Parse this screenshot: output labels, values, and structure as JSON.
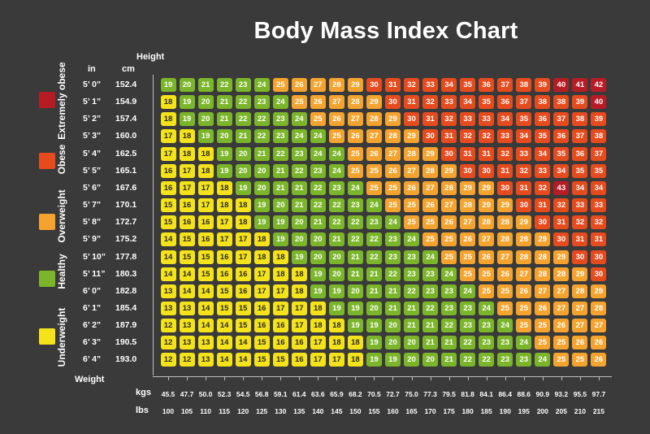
{
  "title": "Body Mass Index Chart",
  "headers": {
    "height": "Height",
    "in": "in",
    "cm": "cm",
    "weight": "Weight",
    "kgs": "kgs",
    "lbs": "lbs"
  },
  "legend": [
    {
      "label": "Extremely obese",
      "color": "#b71c24"
    },
    {
      "label": "Obese",
      "color": "#e64b1e"
    },
    {
      "label": "Overweight",
      "color": "#f4a42e"
    },
    {
      "label": "Healthy",
      "color": "#7bb52a"
    },
    {
      "label": "Underweight",
      "color": "#f4e21b"
    }
  ],
  "chart_data": {
    "type": "heatmap",
    "title": "Body Mass Index Chart",
    "ylabel": "Height",
    "xlabel": "Weight",
    "heights_in": [
      "5’ 0”",
      "5’ 1”",
      "5’ 2”",
      "5’ 3”",
      "5’ 4”",
      "5’ 5”",
      "5’ 6”",
      "5’ 7”",
      "5’ 8”",
      "5’ 9”",
      "5’ 10”",
      "5’ 11”",
      "6’ 0”",
      "6’ 1”",
      "6’ 2”",
      "6’ 3”",
      "6’ 4”"
    ],
    "heights_cm": [
      "152.4",
      "154.9",
      "157.4",
      "160.0",
      "162.5",
      "165.1",
      "167.6",
      "170.1",
      "172.7",
      "175.2",
      "177.8",
      "180.3",
      "182.8",
      "185.4",
      "187.9",
      "190.5",
      "193.0"
    ],
    "weights_kgs": [
      "45.5",
      "47.7",
      "50.0",
      "52.3",
      "54.5",
      "56.8",
      "59.1",
      "61.4",
      "63.6",
      "65.9",
      "68.2",
      "70.5",
      "72.7",
      "75.0",
      "77.3",
      "79.5",
      "81.8",
      "84.1",
      "86.4",
      "88.6",
      "90.9",
      "93.2",
      "95.5",
      "97.7"
    ],
    "weights_lbs": [
      "100",
      "105",
      "110",
      "115",
      "120",
      "125",
      "130",
      "135",
      "140",
      "145",
      "150",
      "155",
      "160",
      "165",
      "170",
      "175",
      "180",
      "185",
      "190",
      "195",
      "200",
      "205",
      "210",
      "215"
    ],
    "values": [
      [
        19,
        20,
        21,
        22,
        23,
        24,
        25,
        26,
        27,
        28,
        29,
        30,
        31,
        32,
        33,
        34,
        35,
        36,
        37,
        38,
        39,
        40,
        41,
        42
      ],
      [
        18,
        19,
        20,
        21,
        22,
        23,
        24,
        25,
        26,
        27,
        28,
        29,
        30,
        31,
        32,
        33,
        34,
        35,
        36,
        37,
        38,
        38,
        39,
        40
      ],
      [
        18,
        19,
        20,
        21,
        22,
        22,
        23,
        24,
        25,
        26,
        27,
        28,
        29,
        30,
        31,
        32,
        33,
        33,
        34,
        35,
        36,
        37,
        38,
        39
      ],
      [
        17,
        18,
        19,
        20,
        21,
        22,
        23,
        24,
        24,
        25,
        26,
        27,
        28,
        29,
        30,
        31,
        32,
        32,
        33,
        34,
        35,
        36,
        37,
        38
      ],
      [
        17,
        18,
        18,
        19,
        20,
        21,
        22,
        23,
        24,
        24,
        25,
        26,
        27,
        28,
        29,
        30,
        31,
        31,
        32,
        33,
        34,
        35,
        36,
        37
      ],
      [
        16,
        17,
        18,
        19,
        20,
        20,
        21,
        22,
        23,
        24,
        25,
        25,
        26,
        27,
        28,
        29,
        30,
        30,
        31,
        32,
        33,
        34,
        35,
        35
      ],
      [
        16,
        17,
        17,
        18,
        19,
        20,
        21,
        21,
        22,
        23,
        24,
        25,
        25,
        26,
        27,
        28,
        29,
        29,
        30,
        31,
        32,
        43,
        34,
        34
      ],
      [
        15,
        16,
        17,
        18,
        18,
        19,
        20,
        21,
        22,
        22,
        23,
        24,
        25,
        25,
        26,
        27,
        28,
        29,
        29,
        30,
        31,
        32,
        33,
        33
      ],
      [
        15,
        16,
        16,
        17,
        18,
        19,
        19,
        20,
        21,
        22,
        22,
        23,
        24,
        25,
        25,
        26,
        27,
        28,
        28,
        29,
        30,
        31,
        32,
        32
      ],
      [
        14,
        15,
        16,
        17,
        17,
        18,
        19,
        20,
        20,
        21,
        22,
        22,
        23,
        24,
        25,
        25,
        26,
        27,
        28,
        28,
        29,
        30,
        31,
        31
      ],
      [
        14,
        15,
        15,
        16,
        17,
        18,
        18,
        19,
        20,
        20,
        21,
        22,
        23,
        23,
        24,
        25,
        25,
        26,
        27,
        28,
        28,
        29,
        30,
        30
      ],
      [
        14,
        14,
        15,
        16,
        16,
        17,
        18,
        18,
        19,
        20,
        21,
        21,
        22,
        23,
        23,
        24,
        25,
        25,
        26,
        27,
        28,
        28,
        29,
        30
      ],
      [
        13,
        14,
        14,
        15,
        16,
        17,
        17,
        18,
        19,
        19,
        20,
        21,
        21,
        22,
        23,
        23,
        24,
        25,
        25,
        26,
        27,
        27,
        28,
        29
      ],
      [
        13,
        13,
        14,
        15,
        15,
        16,
        17,
        17,
        18,
        19,
        19,
        20,
        21,
        21,
        22,
        23,
        23,
        24,
        25,
        25,
        26,
        27,
        27,
        28
      ],
      [
        12,
        13,
        14,
        14,
        15,
        16,
        16,
        17,
        18,
        18,
        19,
        19,
        20,
        21,
        21,
        22,
        23,
        23,
        24,
        25,
        25,
        26,
        27,
        27
      ],
      [
        12,
        13,
        13,
        14,
        14,
        15,
        16,
        16,
        17,
        18,
        18,
        19,
        20,
        20,
        21,
        21,
        22,
        23,
        23,
        24,
        25,
        25,
        26,
        26
      ],
      [
        12,
        12,
        13,
        14,
        14,
        15,
        15,
        16,
        17,
        17,
        18,
        19,
        19,
        20,
        20,
        21,
        22,
        22,
        23,
        23,
        24,
        25,
        25,
        26
      ]
    ]
  }
}
